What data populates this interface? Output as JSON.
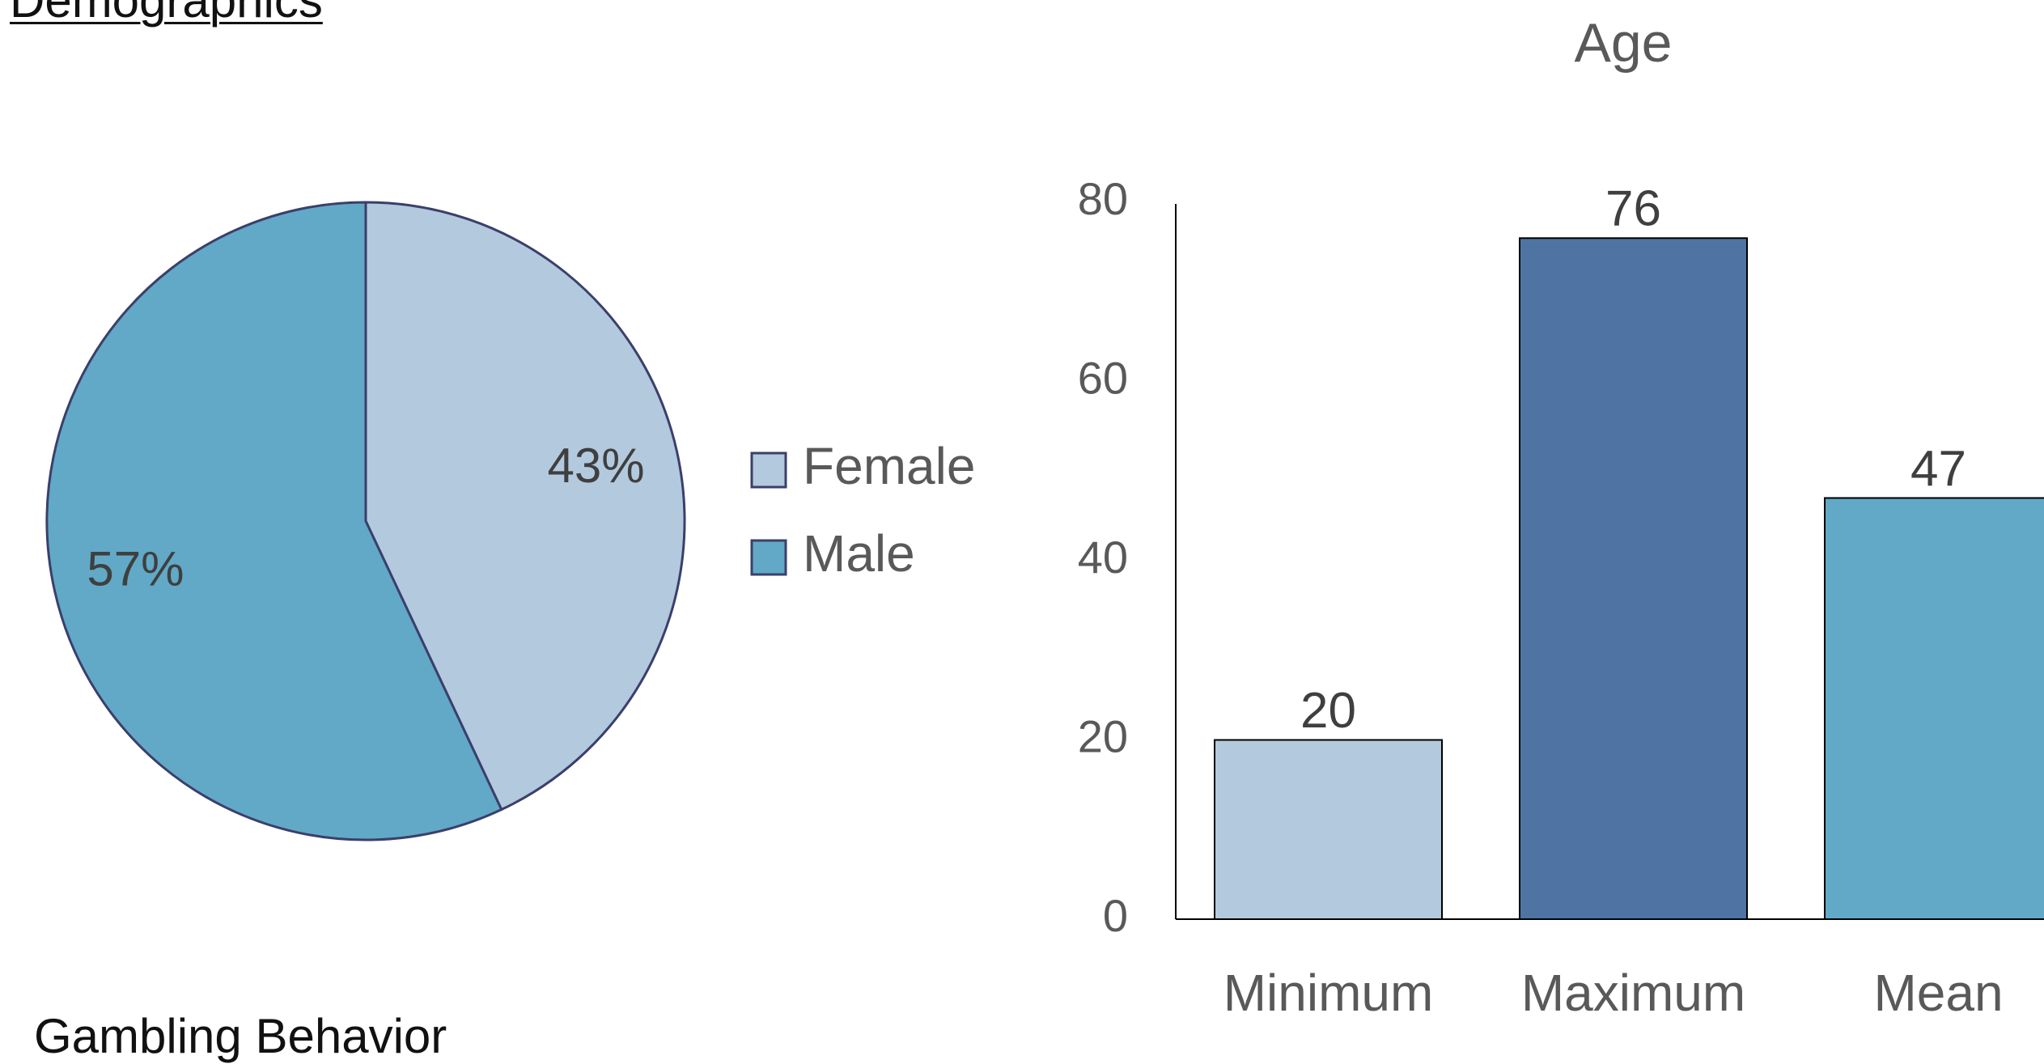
{
  "page": {
    "heading": "Demographics",
    "subheading": "Gambling Behavior"
  },
  "colors": {
    "light_blue": "#b3c9de",
    "dark_blue": "#4f74a3",
    "teal": "#61a9c7",
    "slice_stroke": "#3b3f6b",
    "text": "#595959",
    "label_text": "#3f3f3f",
    "axis": "#000000"
  },
  "chart_data": [
    {
      "type": "pie",
      "title": "",
      "slices": [
        {
          "label": "Female",
          "value": 43,
          "data_label": "43%",
          "color": "#b3c9de"
        },
        {
          "label": "Male",
          "value": 57,
          "data_label": "57%",
          "color": "#61a9c7"
        }
      ],
      "legend": {
        "position": "right",
        "entries": [
          "Female",
          "Male"
        ]
      }
    },
    {
      "type": "bar",
      "title": "Age",
      "categories": [
        "Minimum",
        "Maximum",
        "Mean"
      ],
      "values": [
        20,
        76,
        47
      ],
      "data_labels": [
        "20",
        "76",
        "47"
      ],
      "bar_colors": [
        "#b3c9de",
        "#4f74a3",
        "#61a9c7"
      ],
      "ylim": [
        0,
        80
      ],
      "yticks": [
        0,
        20,
        40,
        60,
        80
      ],
      "ytick_labels": [
        "0",
        "20",
        "40",
        "60",
        "80"
      ],
      "xlabel": "",
      "ylabel": "",
      "grid": false
    }
  ]
}
